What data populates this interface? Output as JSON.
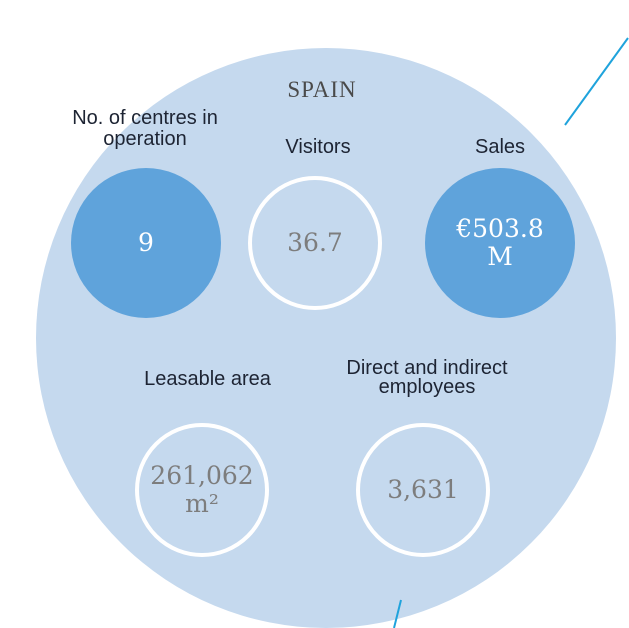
{
  "title": "SPAIN",
  "stats": [
    {
      "label": "No. of centres in operation",
      "value": "9"
    },
    {
      "label": "Visitors",
      "value": "36.7"
    },
    {
      "label": "Sales",
      "value": "€503.8 M"
    },
    {
      "label": "Leasable area",
      "value": "261,062 m²"
    },
    {
      "label": "Direct and indirect employees",
      "value": "3,631"
    }
  ]
}
